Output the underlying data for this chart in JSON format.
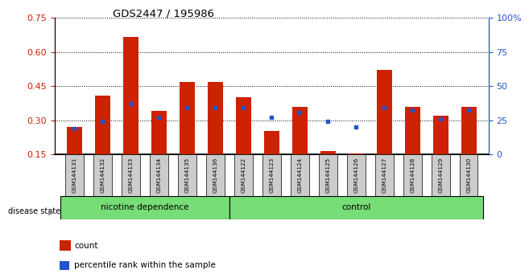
{
  "title": "GDS2447 / 195986",
  "samples": [
    "GSM144131",
    "GSM144132",
    "GSM144133",
    "GSM144134",
    "GSM144135",
    "GSM144136",
    "GSM144122",
    "GSM144123",
    "GSM144124",
    "GSM144125",
    "GSM144126",
    "GSM144127",
    "GSM144128",
    "GSM144129",
    "GSM144130"
  ],
  "count_values": [
    0.27,
    0.41,
    0.665,
    0.34,
    0.47,
    0.47,
    0.4,
    0.255,
    0.36,
    0.165,
    0.155,
    0.52,
    0.36,
    0.32,
    0.36
  ],
  "percentile_values": [
    0.265,
    0.295,
    0.375,
    0.315,
    0.355,
    0.355,
    0.355,
    0.315,
    0.335,
    0.295,
    0.27,
    0.355,
    0.345,
    0.305,
    0.345
  ],
  "ylim_left": [
    0.15,
    0.75
  ],
  "ylim_right": [
    0,
    100
  ],
  "yticks_left": [
    0.15,
    0.3,
    0.45,
    0.6,
    0.75
  ],
  "yticks_right": [
    0,
    25,
    50,
    75,
    100
  ],
  "group1_label": "nicotine dependence",
  "group2_label": "control",
  "group1_count": 6,
  "group2_count": 9,
  "legend_count": "count",
  "legend_percentile": "percentile rank within the sample",
  "disease_state_label": "disease state",
  "bar_color": "#cc2200",
  "marker_color": "#2255cc",
  "group_bg": "#77dd77",
  "sample_bg": "#cccccc",
  "axis_label_color_left": "#cc2200",
  "axis_label_color_right": "#2255cc",
  "bar_width": 0.55
}
